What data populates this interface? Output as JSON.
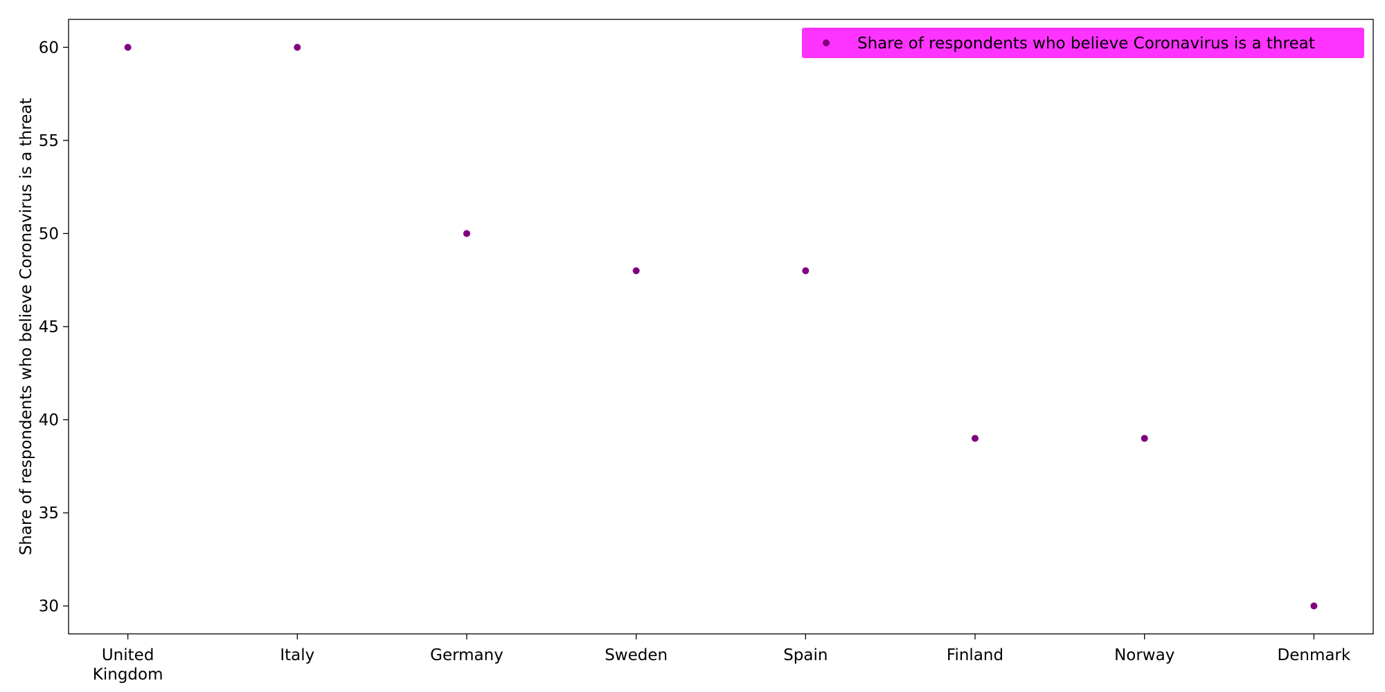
{
  "chart_data": {
    "type": "scatter",
    "categories": [
      "United Kingdom",
      "Italy",
      "Germany",
      "Sweden",
      "Spain",
      "Finland",
      "Norway",
      "Denmark"
    ],
    "series": [
      {
        "name": "Share of respondents who believe Coronavirus is a threat",
        "values": [
          60,
          60,
          50,
          48,
          48,
          39,
          39,
          30
        ],
        "color": "#800080"
      }
    ],
    "ylabel": "Share of respondents who believe Coronavirus is a threat",
    "xlabel": "",
    "ylim": [
      28.5,
      61.5
    ],
    "yticks": [
      30,
      35,
      40,
      45,
      50,
      55,
      60
    ],
    "grid": false,
    "legend": {
      "position": "top-right",
      "background": "#ff33ff"
    }
  }
}
